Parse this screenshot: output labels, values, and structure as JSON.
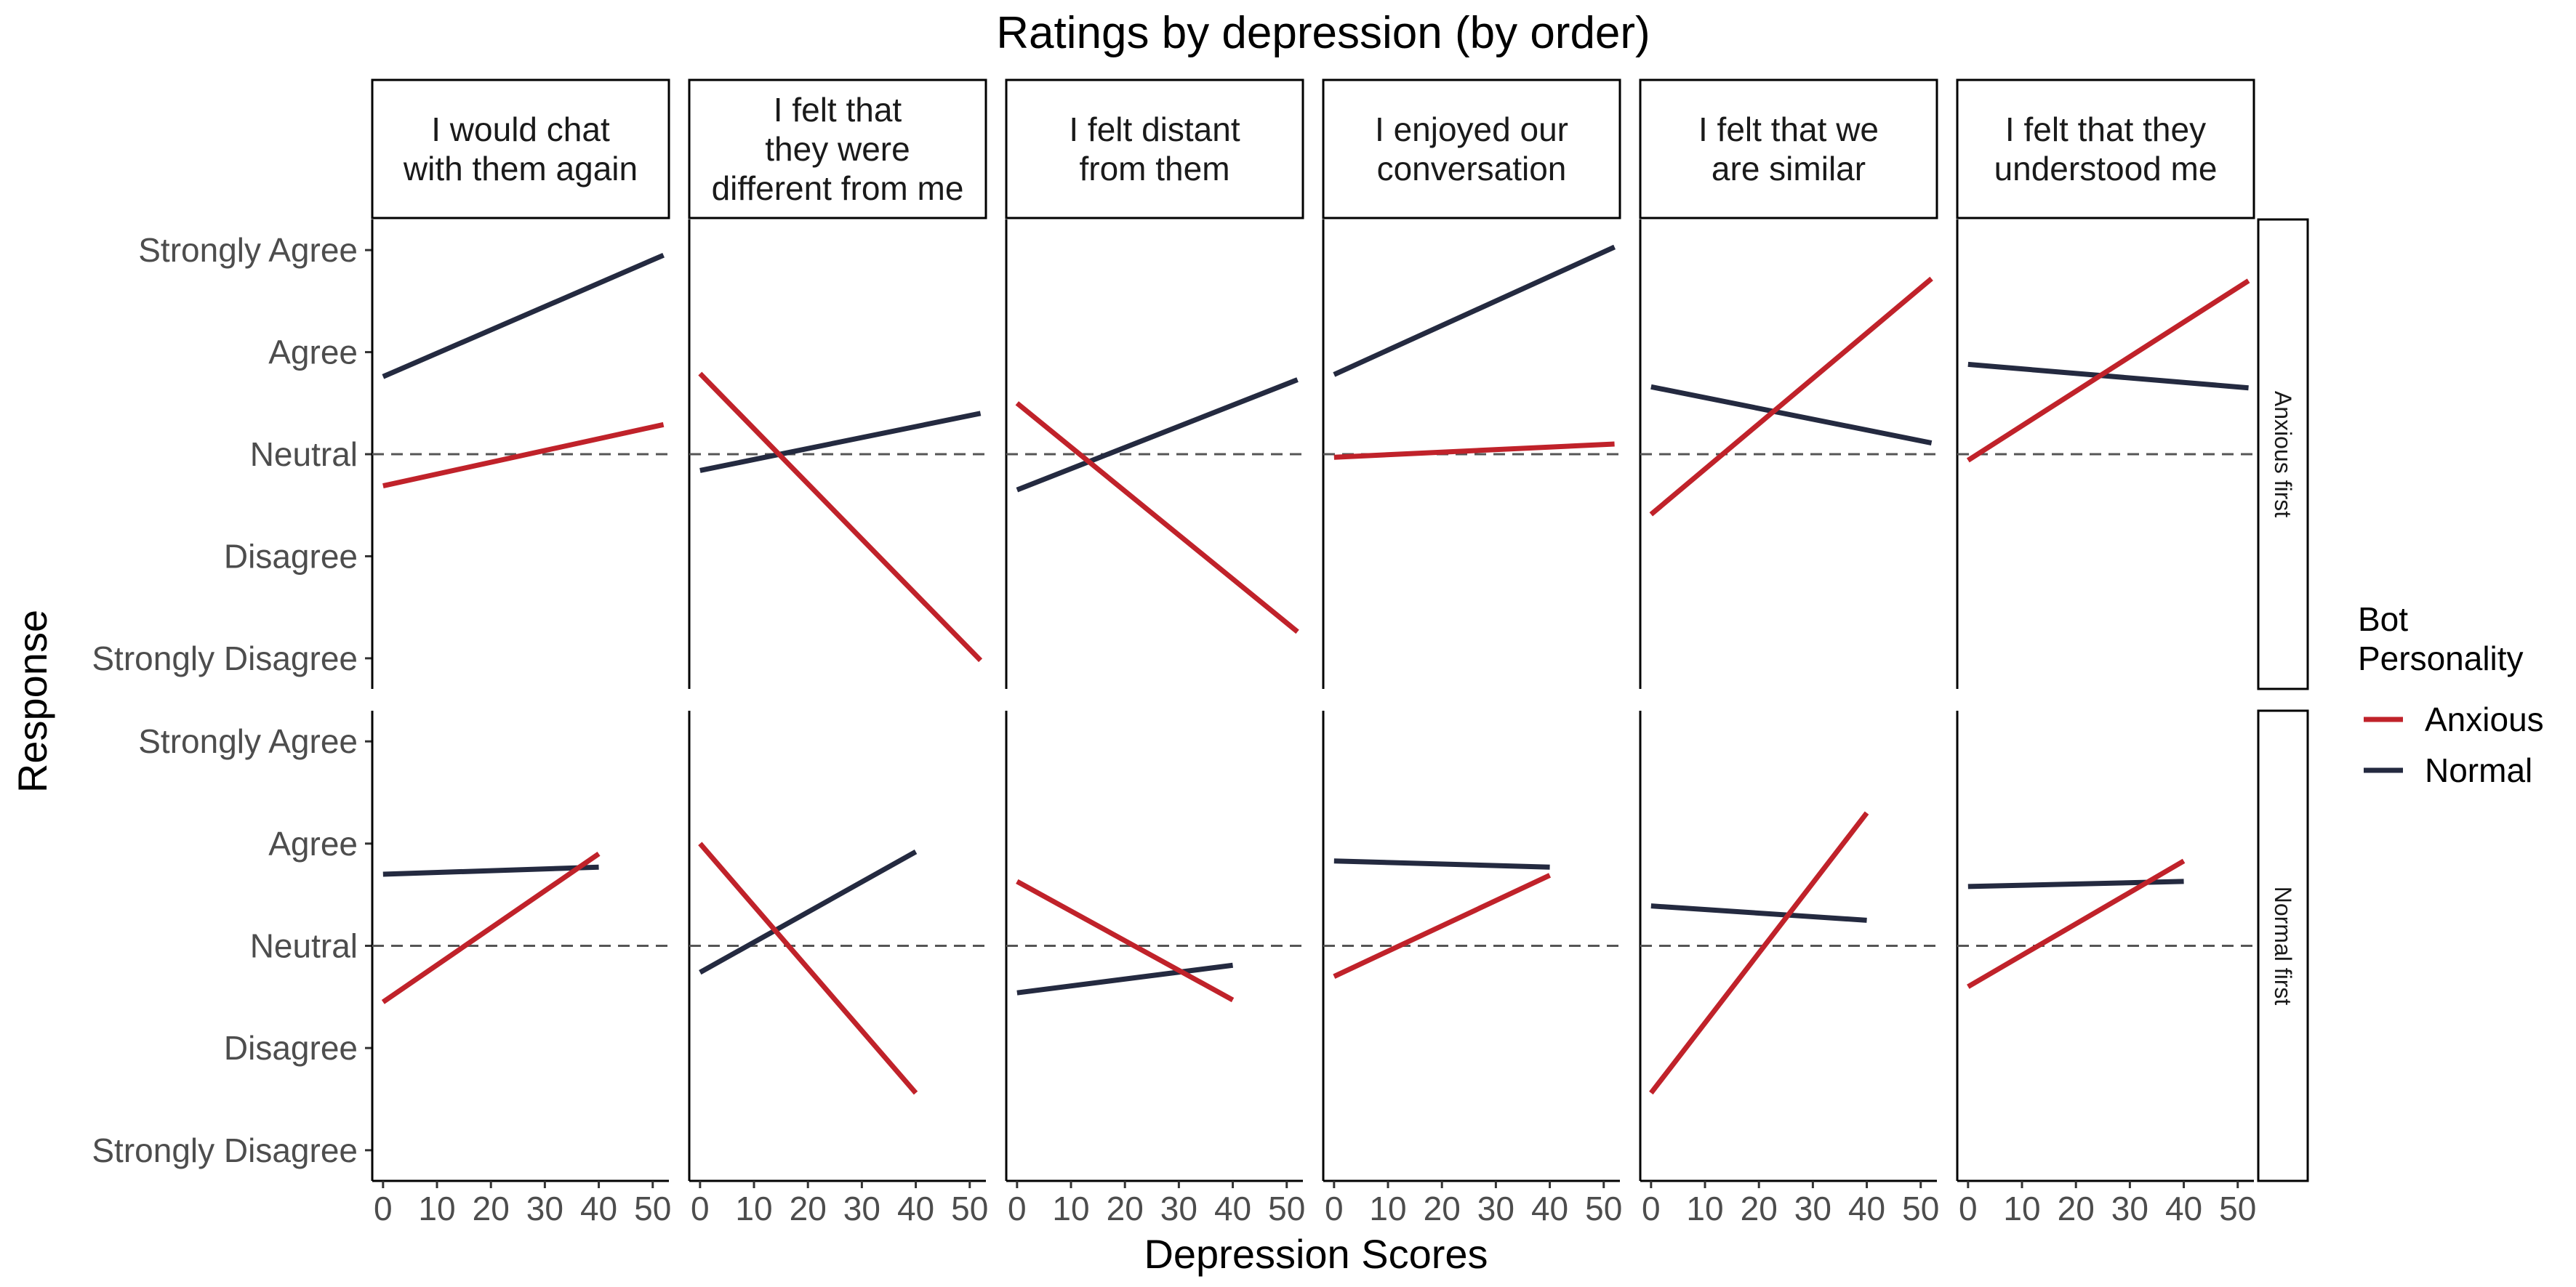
{
  "chart_data": {
    "type": "line",
    "title": "Ratings by depression (by order)",
    "xlabel": "Depression Scores",
    "ylabel": "Response",
    "xlim": [
      -2,
      53
    ],
    "xticks": [
      0,
      10,
      20,
      30,
      40,
      50
    ],
    "ylim": [
      -0.3,
      4.3
    ],
    "y_levels": [
      "Strongly Disagree",
      "Disagree",
      "Neutral",
      "Agree",
      "Strongly Agree"
    ],
    "reference_line_y": 2,
    "grid": false,
    "legend": {
      "title_lines": [
        "Bot",
        "Personality"
      ],
      "placement": "right",
      "entries": [
        {
          "name": "Anxious",
          "color": "#c0222a"
        },
        {
          "name": "Normal",
          "color": "#242a40"
        }
      ]
    },
    "columns": [
      {
        "label_lines": [
          "I would chat",
          "with them again"
        ]
      },
      {
        "label_lines": [
          "I felt that",
          "they were",
          "different from me"
        ]
      },
      {
        "label_lines": [
          "I felt distant",
          "from them"
        ]
      },
      {
        "label_lines": [
          "I enjoyed our",
          "conversation"
        ]
      },
      {
        "label_lines": [
          "I felt that we",
          "are similar"
        ]
      },
      {
        "label_lines": [
          "I felt that they",
          "understood me"
        ]
      }
    ],
    "rows": [
      {
        "label": "Anxious first",
        "panels": [
          {
            "Anxious": [
              [
                0,
                1.69
              ],
              [
                52,
                2.29
              ]
            ],
            "Normal": [
              [
                0,
                2.76
              ],
              [
                52,
                3.95
              ]
            ]
          },
          {
            "Anxious": [
              [
                0,
                2.79
              ],
              [
                52,
                -0.02
              ]
            ],
            "Normal": [
              [
                0,
                1.84
              ],
              [
                52,
                2.4
              ]
            ]
          },
          {
            "Anxious": [
              [
                0,
                2.5
              ],
              [
                52,
                0.26
              ]
            ],
            "Normal": [
              [
                0,
                1.65
              ],
              [
                52,
                2.73
              ]
            ]
          },
          {
            "Anxious": [
              [
                0,
                1.97
              ],
              [
                52,
                2.1
              ]
            ],
            "Normal": [
              [
                0,
                2.78
              ],
              [
                52,
                4.03
              ]
            ]
          },
          {
            "Anxious": [
              [
                0,
                1.41
              ],
              [
                52,
                3.72
              ]
            ],
            "Normal": [
              [
                0,
                2.66
              ],
              [
                52,
                2.11
              ]
            ]
          },
          {
            "Anxious": [
              [
                0,
                1.94
              ],
              [
                52,
                3.7
              ]
            ],
            "Normal": [
              [
                0,
                2.88
              ],
              [
                52,
                2.65
              ]
            ]
          }
        ]
      },
      {
        "label": "Normal first",
        "panels": [
          {
            "Anxious": [
              [
                0,
                1.45
              ],
              [
                40,
                2.9
              ]
            ],
            "Normal": [
              [
                0,
                2.7
              ],
              [
                40,
                2.77
              ]
            ]
          },
          {
            "Anxious": [
              [
                0,
                3.0
              ],
              [
                40,
                0.56
              ]
            ],
            "Normal": [
              [
                0,
                1.74
              ],
              [
                40,
                2.92
              ]
            ]
          },
          {
            "Anxious": [
              [
                0,
                2.63
              ],
              [
                40,
                1.47
              ]
            ],
            "Normal": [
              [
                0,
                1.54
              ],
              [
                40,
                1.81
              ]
            ]
          },
          {
            "Anxious": [
              [
                0,
                1.7
              ],
              [
                40,
                2.69
              ]
            ],
            "Normal": [
              [
                0,
                2.83
              ],
              [
                40,
                2.77
              ]
            ]
          },
          {
            "Anxious": [
              [
                0,
                0.56
              ],
              [
                40,
                3.3
              ]
            ],
            "Normal": [
              [
                0,
                2.39
              ],
              [
                40,
                2.25
              ]
            ]
          },
          {
            "Anxious": [
              [
                0,
                1.6
              ],
              [
                40,
                2.83
              ]
            ],
            "Normal": [
              [
                0,
                2.58
              ],
              [
                40,
                2.63
              ]
            ]
          }
        ]
      }
    ]
  }
}
